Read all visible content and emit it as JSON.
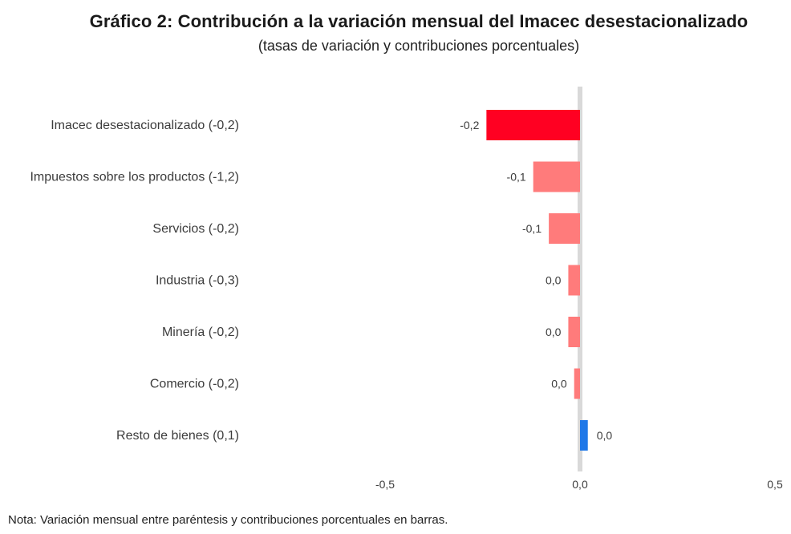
{
  "chart_data": {
    "type": "bar",
    "orientation": "horizontal",
    "title": "Gráfico 2: Contribución a la variación mensual del Imacec desestacionalizado",
    "subtitle": "(tasas de variación y contribuciones porcentuales)",
    "categories": [
      "Imacec desestacionalizado (-0,2)",
      "Impuestos sobre los productos (-1,2)",
      "Servicios (-0,2)",
      "Industria (-0,3)",
      "Minería (-0,2)",
      "Comercio (-0,2)",
      "Resto de bienes (0,1)"
    ],
    "values": [
      -0.24,
      -0.12,
      -0.08,
      -0.03,
      -0.03,
      -0.015,
      0.02
    ],
    "data_labels": [
      "-0,2",
      "-0,1",
      "-0,1",
      "0,0",
      "0,0",
      "0,0",
      "0,0"
    ],
    "xlim": [
      -0.5,
      0.5
    ],
    "xticks": [
      -0.5,
      0.0,
      0.5
    ],
    "xtick_labels": [
      "-0,5",
      "0,0",
      "0,5"
    ],
    "grid": false,
    "legend": "none",
    "colors": {
      "total": "#ff0022",
      "negative": "#ff7b7b",
      "positive": "#1f78e8",
      "zero_line": "#d9d9d9"
    }
  },
  "note": "Nota: Variación mensual entre paréntesis y contribuciones porcentuales en barras."
}
